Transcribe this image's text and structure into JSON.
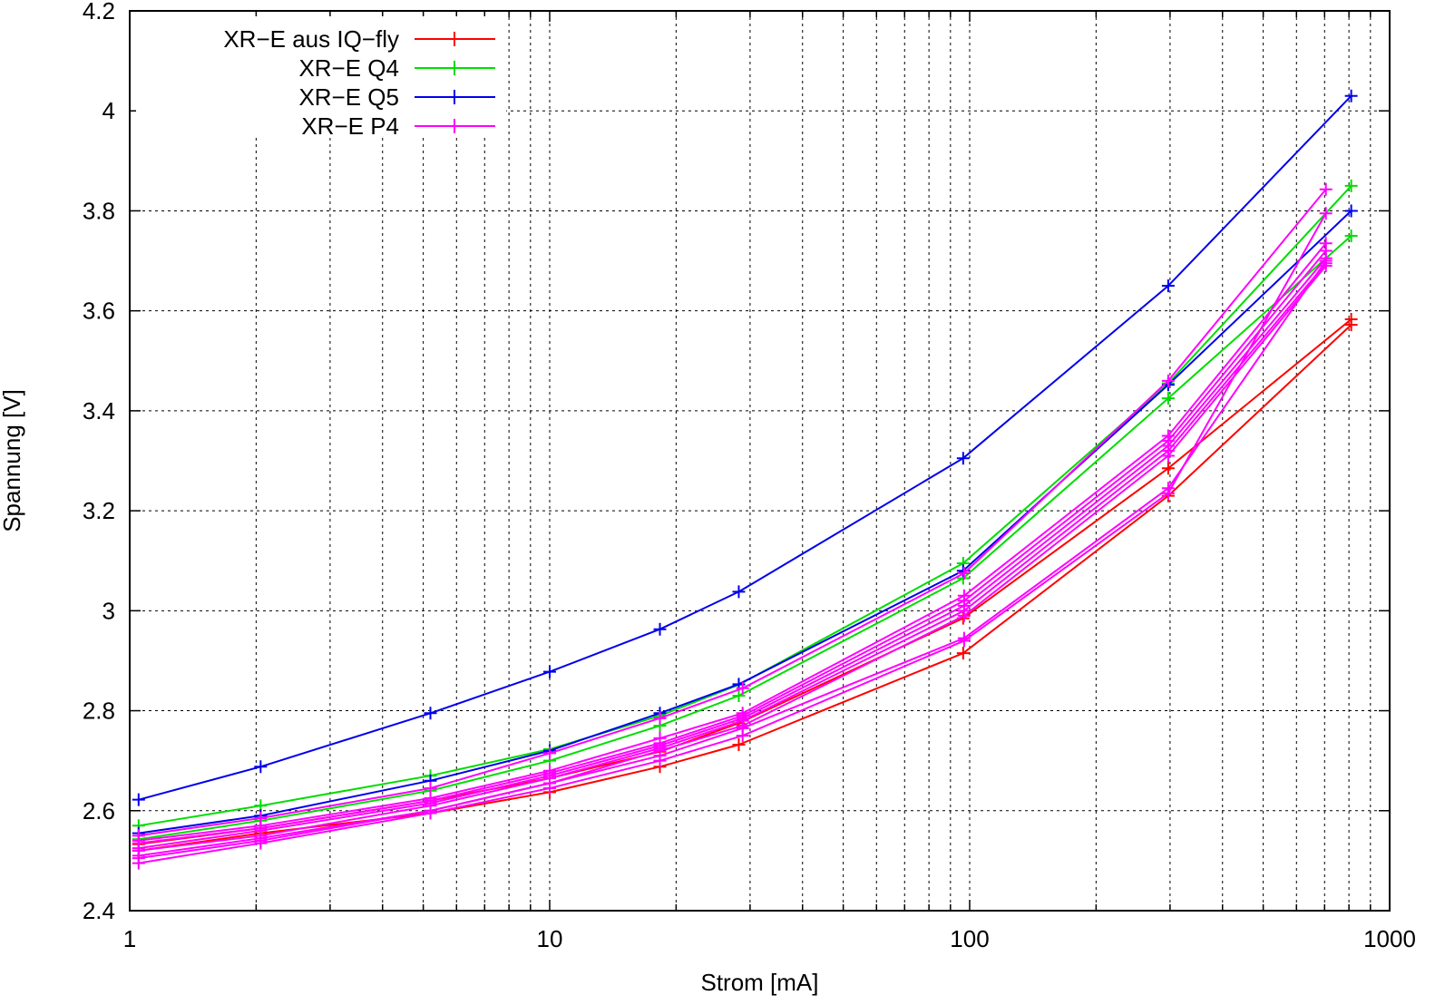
{
  "chart_data": {
    "type": "line",
    "title": "",
    "xlabel": "Strom [mA]",
    "ylabel": "Spannung [V]",
    "xscale": "log",
    "xlim": [
      1,
      1000
    ],
    "ylim": [
      2.4,
      4.2
    ],
    "grid": true,
    "legend_position": "top-left",
    "x_ticks": [
      {
        "value": 1,
        "label": "1"
      },
      {
        "value": 10,
        "label": "10"
      },
      {
        "value": 100,
        "label": "100"
      },
      {
        "value": 1000,
        "label": "1000"
      }
    ],
    "y_ticks": [
      {
        "value": 2.4,
        "label": "2.4"
      },
      {
        "value": 2.6,
        "label": "2.6"
      },
      {
        "value": 2.8,
        "label": "2.8"
      },
      {
        "value": 3.0,
        "label": "3"
      },
      {
        "value": 3.2,
        "label": "3.2"
      },
      {
        "value": 3.4,
        "label": "3.4"
      },
      {
        "value": 3.6,
        "label": "3.6"
      },
      {
        "value": 3.8,
        "label": "3.8"
      },
      {
        "value": 4.0,
        "label": "4"
      },
      {
        "value": 4.2,
        "label": "4.2"
      }
    ],
    "legend": [
      {
        "label": "XR−E aus IQ−fly",
        "color": "#ff0000"
      },
      {
        "label": "XR−E Q4",
        "color": "#00dd00"
      },
      {
        "label": "XR−E Q5",
        "color": "#0000ee"
      },
      {
        "label": "XR−E P4",
        "color": "#ff00ff"
      }
    ],
    "series": [
      {
        "group": 0,
        "x": [
          1.05,
          2.05,
          5.2,
          10.0,
          18.3,
          28.2,
          96.5,
          297,
          810
        ],
        "y": [
          2.52,
          2.555,
          2.595,
          2.637,
          2.688,
          2.732,
          2.915,
          3.23,
          3.572
        ]
      },
      {
        "group": 0,
        "x": [
          1.05,
          2.05,
          5.2,
          10.0,
          18.3,
          28.2,
          96.5,
          297,
          810
        ],
        "y": [
          2.533,
          2.565,
          2.62,
          2.665,
          2.718,
          2.775,
          2.985,
          3.285,
          3.583
        ]
      },
      {
        "group": 1,
        "x": [
          1.05,
          2.05,
          5.2,
          10.0,
          18.3,
          28.2,
          96.5,
          297,
          810
        ],
        "y": [
          2.57,
          2.61,
          2.67,
          2.723,
          2.79,
          2.852,
          3.095,
          3.455,
          3.85
        ]
      },
      {
        "group": 1,
        "x": [
          1.05,
          2.05,
          5.2,
          10.0,
          18.3,
          28.2,
          96.5,
          297,
          810
        ],
        "y": [
          2.543,
          2.58,
          2.64,
          2.7,
          2.77,
          2.83,
          3.065,
          3.425,
          3.75
        ]
      },
      {
        "group": 2,
        "x": [
          1.05,
          2.05,
          5.2,
          10.0,
          18.3,
          28.2,
          96.5,
          297,
          810
        ],
        "y": [
          2.622,
          2.688,
          2.795,
          2.878,
          2.963,
          3.038,
          3.305,
          3.65,
          4.03
        ]
      },
      {
        "group": 2,
        "x": [
          1.05,
          2.05,
          5.2,
          10.0,
          18.3,
          28.2,
          96.5,
          297,
          810
        ],
        "y": [
          2.555,
          2.59,
          2.66,
          2.72,
          2.795,
          2.853,
          3.08,
          3.452,
          3.8
        ]
      },
      {
        "group": 3,
        "x": [
          1.05,
          2.05,
          5.2,
          10.0,
          18.3,
          28.8,
          97,
          297,
          705
        ],
        "y": [
          2.55,
          2.585,
          2.645,
          2.715,
          2.785,
          2.845,
          3.075,
          3.46,
          3.843
        ]
      },
      {
        "group": 3,
        "x": [
          1.05,
          2.05,
          5.2,
          10.0,
          18.3,
          28.8,
          97,
          297,
          705
        ],
        "y": [
          2.54,
          2.57,
          2.625,
          2.68,
          2.745,
          2.795,
          3.03,
          3.35,
          3.735
        ]
      },
      {
        "group": 3,
        "x": [
          1.05,
          2.05,
          5.2,
          10.0,
          18.3,
          28.8,
          97,
          297,
          705
        ],
        "y": [
          2.535,
          2.565,
          2.62,
          2.675,
          2.735,
          2.79,
          3.02,
          3.34,
          3.72
        ]
      },
      {
        "group": 3,
        "x": [
          1.05,
          2.05,
          5.2,
          10.0,
          18.3,
          28.8,
          97,
          297,
          705
        ],
        "y": [
          2.525,
          2.56,
          2.615,
          2.67,
          2.73,
          2.785,
          3.01,
          3.33,
          3.705
        ]
      },
      {
        "group": 3,
        "x": [
          1.05,
          2.05,
          5.2,
          10.0,
          18.3,
          28.8,
          97,
          297,
          705
        ],
        "y": [
          2.52,
          2.55,
          2.61,
          2.665,
          2.725,
          2.78,
          3.0,
          3.32,
          3.695
        ]
      },
      {
        "group": 3,
        "x": [
          1.05,
          2.05,
          5.2,
          10.0,
          18.3,
          28.8,
          97,
          297,
          705
        ],
        "y": [
          2.51,
          2.545,
          2.6,
          2.655,
          2.72,
          2.77,
          2.99,
          3.31,
          3.69
        ]
      },
      {
        "group": 3,
        "x": [
          1.05,
          2.05,
          5.2,
          10.0,
          18.3,
          28.8,
          97,
          297,
          705
        ],
        "y": [
          2.505,
          2.54,
          2.6,
          2.655,
          2.71,
          2.765,
          2.945,
          3.245,
          3.7
        ]
      },
      {
        "group": 3,
        "x": [
          1.05,
          2.05,
          5.2,
          10.0,
          18.3,
          28.8,
          97,
          297,
          705
        ],
        "y": [
          2.495,
          2.535,
          2.595,
          2.645,
          2.7,
          2.75,
          2.94,
          3.235,
          3.795
        ]
      }
    ]
  }
}
